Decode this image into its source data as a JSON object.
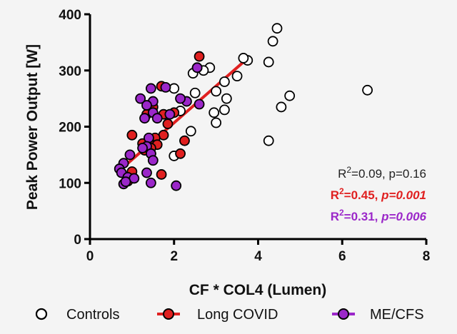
{
  "chart_data": {
    "type": "scatter",
    "xlabel": "CF * COL4 (Lumen)",
    "ylabel": "Peak Power Output [W]",
    "xlim": [
      0,
      8
    ],
    "ylim": [
      0,
      400
    ],
    "x_ticks": [
      0,
      2,
      4,
      6,
      8
    ],
    "y_ticks": [
      0,
      100,
      200,
      300,
      400
    ],
    "grid": false,
    "legend_position": "bottom",
    "series": [
      {
        "name": "Controls",
        "marker": "open-circle",
        "color": "#000000",
        "fill": "#ffffff",
        "points": [
          [
            4.45,
            375
          ],
          [
            4.35,
            352
          ],
          [
            4.25,
            315
          ],
          [
            6.6,
            265
          ],
          [
            4.75,
            255
          ],
          [
            4.55,
            235
          ],
          [
            4.25,
            175
          ],
          [
            3.75,
            318
          ],
          [
            3.65,
            322
          ],
          [
            3.5,
            290
          ],
          [
            3.2,
            280
          ],
          [
            3.25,
            250
          ],
          [
            3.2,
            230
          ],
          [
            3.0,
            263
          ],
          [
            2.95,
            225
          ],
          [
            3.0,
            207
          ],
          [
            2.85,
            305
          ],
          [
            2.7,
            300
          ],
          [
            2.55,
            305
          ],
          [
            2.45,
            295
          ],
          [
            2.5,
            260
          ],
          [
            2.0,
            268
          ],
          [
            2.4,
            192
          ],
          [
            2.15,
            228
          ],
          [
            2.0,
            148
          ]
        ]
      },
      {
        "name": "Long COVID",
        "marker": "filled-circle",
        "color": "#e02020",
        "points": [
          [
            2.6,
            325
          ],
          [
            1.7,
            272
          ],
          [
            1.5,
            235
          ],
          [
            1.35,
            222
          ],
          [
            1.75,
            222
          ],
          [
            2.0,
            225
          ],
          [
            1.85,
            205
          ],
          [
            1.75,
            185
          ],
          [
            1.55,
            180
          ],
          [
            1.4,
            175
          ],
          [
            1.25,
            170
          ],
          [
            1.6,
            168
          ],
          [
            1.45,
            162
          ],
          [
            1.3,
            158
          ],
          [
            1.45,
            152
          ],
          [
            1.0,
            185
          ],
          [
            2.25,
            175
          ],
          [
            2.15,
            152
          ],
          [
            1.7,
            115
          ],
          [
            1.0,
            120
          ],
          [
            0.95,
            108
          ],
          [
            0.9,
            103
          ]
        ]
      },
      {
        "name": "ME/CFS",
        "marker": "filled-circle",
        "color": "#9b27c9",
        "points": [
          [
            1.8,
            270
          ],
          [
            1.45,
            268
          ],
          [
            1.2,
            250
          ],
          [
            1.5,
            245
          ],
          [
            2.55,
            305
          ],
          [
            2.3,
            245
          ],
          [
            1.35,
            238
          ],
          [
            1.5,
            225
          ],
          [
            1.9,
            222
          ],
          [
            2.6,
            240
          ],
          [
            2.15,
            250
          ],
          [
            1.3,
            215
          ],
          [
            1.6,
            215
          ],
          [
            1.4,
            180
          ],
          [
            1.35,
            165
          ],
          [
            1.25,
            162
          ],
          [
            1.45,
            152
          ],
          [
            1.5,
            140
          ],
          [
            0.95,
            150
          ],
          [
            0.8,
            135
          ],
          [
            0.7,
            125
          ],
          [
            0.75,
            118
          ],
          [
            0.9,
            110
          ],
          [
            1.35,
            118
          ],
          [
            1.05,
            108
          ],
          [
            0.8,
            98
          ],
          [
            0.85,
            102
          ],
          [
            1.45,
            100
          ],
          [
            2.05,
            95
          ]
        ]
      }
    ],
    "regression_lines": [
      {
        "series": "Long COVID",
        "color": "#e02020",
        "x": [
          0.75,
          3.65
        ],
        "y": [
          125,
          315
        ]
      }
    ],
    "annotations": [
      {
        "sup": "2",
        "pre": "R",
        "main": "=0.09, ",
        "p": "p=0.16",
        "color": "#222222",
        "bold": false,
        "italic_p": false
      },
      {
        "sup": "2",
        "pre": "R",
        "main": "=0.45, ",
        "p": "p=0.001",
        "color": "#e02020",
        "bold": true,
        "italic_p": true
      },
      {
        "sup": "2",
        "pre": "R",
        "main": "=0.31, ",
        "p": "p=0.006",
        "color": "#9b27c9",
        "bold": true,
        "italic_p": true
      }
    ]
  }
}
